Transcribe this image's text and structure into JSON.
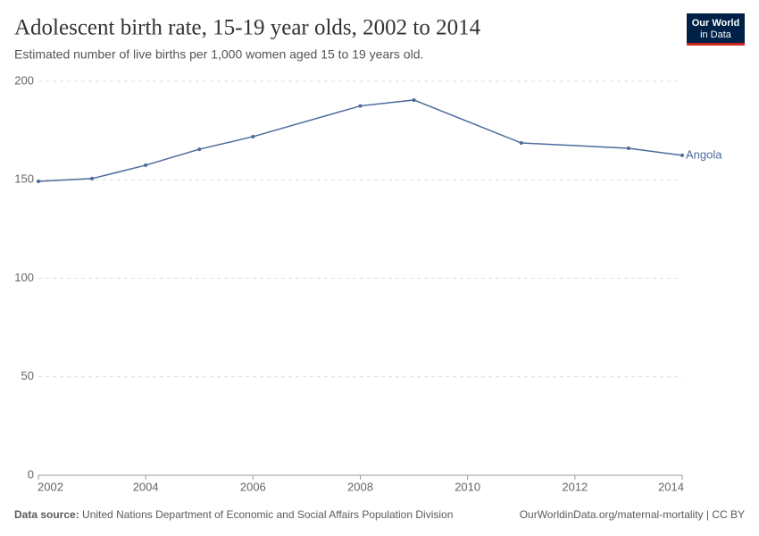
{
  "logo": [
    "Our World",
    "in Data"
  ],
  "chart_data": {
    "type": "line",
    "title": "Adolescent birth rate, 15-19 year olds, 2002 to 2014",
    "subtitle": "Estimated number of live births per 1,000 women aged 15 to 19 years old.",
    "x": [
      2002,
      2003,
      2004,
      2005,
      2006,
      2008,
      2009,
      2011,
      2013,
      2014
    ],
    "series": [
      {
        "name": "Angola",
        "color": "#4c6a9c",
        "values": [
          149.2,
          150.6,
          157.4,
          165.5,
          171.9,
          187.5,
          190.5,
          168.7,
          166.0,
          162.4
        ]
      }
    ],
    "xlim": [
      2002,
      2014
    ],
    "xticks": [
      2002,
      2004,
      2006,
      2008,
      2010,
      2012,
      2014
    ],
    "ylim": [
      0,
      200
    ],
    "yticks": [
      0,
      50,
      100,
      150,
      200
    ],
    "grid": true,
    "source_label": "Data source:",
    "source": "United Nations Department of Economic and Social Affairs Population Division",
    "footer_right": "OurWorldinData.org/maternal-mortality | CC BY"
  }
}
